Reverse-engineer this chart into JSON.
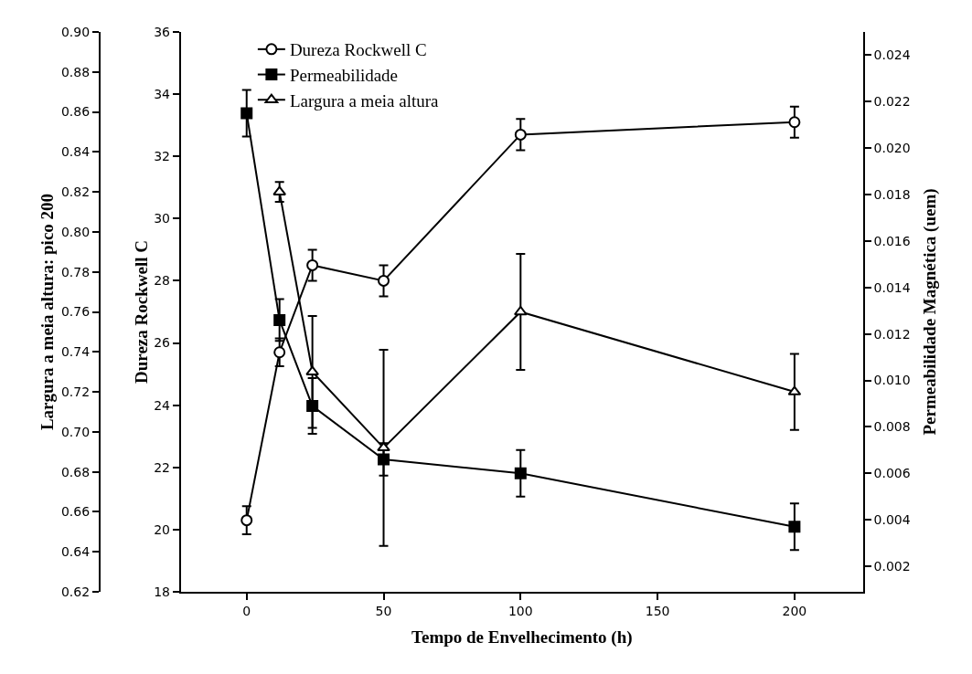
{
  "chart_data": {
    "type": "line",
    "xlabel": "Tempo de Envelhecimento (h)",
    "ylabel": "Dureza Rockwell C",
    "y2label": "Permeabilidade Magnética (uem)",
    "y3label": "Largura a meia altura: pico 200",
    "xlim": [
      -24,
      225
    ],
    "xticks": [
      0,
      50,
      100,
      150,
      200
    ],
    "ylim": [
      18,
      36
    ],
    "yticks": [
      18,
      20,
      22,
      24,
      26,
      28,
      30,
      32,
      34,
      36
    ],
    "y2lim": [
      0.0009,
      0.025
    ],
    "y2ticks": [
      0.002,
      0.004,
      0.006,
      0.008,
      {
        "value": 0.01,
        "label": "0.010"
      },
      0.012,
      0.014,
      0.016,
      0.018,
      {
        "value": 0.02,
        "label": "0.020"
      },
      0.022,
      0.024
    ],
    "y3lim": [
      0.62,
      0.9
    ],
    "y3ticks": [
      0.62,
      0.64,
      0.66,
      0.68,
      {
        "value": 0.7,
        "label": "0.70"
      },
      0.72,
      0.74,
      0.76,
      0.78,
      {
        "value": 0.8,
        "label": "0.80"
      },
      0.82,
      0.84,
      0.86,
      0.88,
      {
        "value": 0.9,
        "label": "0.90"
      }
    ],
    "legend": "top left",
    "series": [
      {
        "name": "Dureza Rockwell C",
        "color": "#000000",
        "marker": "circle",
        "axis": "y",
        "x": [
          0,
          12,
          24,
          50,
          100,
          200
        ],
        "values": [
          20.3,
          25.7,
          28.5,
          28.0,
          32.7,
          33.1
        ],
        "errors": [
          0.45,
          0.45,
          0.5,
          0.5,
          0.5,
          0.5
        ]
      },
      {
        "name": "Permeabilidade",
        "color": "#000000",
        "marker": "square",
        "axis": "y2",
        "x": [
          0,
          12,
          24,
          50,
          100,
          200
        ],
        "values": [
          0.0215,
          0.0126,
          0.0089,
          0.0066,
          0.006,
          0.0037
        ],
        "errors": [
          0.001,
          0.0009,
          0.0012,
          0.0007,
          0.001,
          0.001
        ]
      },
      {
        "name": "Largura a meia altura",
        "color": "#000000",
        "marker": "triangle",
        "axis": "y3",
        "x": [
          12,
          24,
          50,
          100,
          200
        ],
        "values": [
          0.82,
          0.73,
          0.692,
          0.76,
          0.72
        ],
        "errors": [
          0.005,
          0.028,
          0.049,
          0.029,
          0.019
        ]
      }
    ]
  }
}
